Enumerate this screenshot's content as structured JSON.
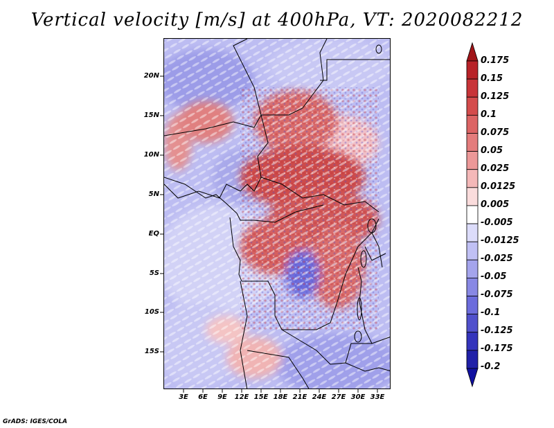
{
  "title": "Vertical velocity [m/s] at 400hPa, VT: 2020082212",
  "credit": "GrADS: IGES/COLA",
  "y_axis_labels": [
    "20N",
    "15N",
    "10N",
    "5N",
    "EQ",
    "5S",
    "10S",
    "15S"
  ],
  "x_axis_labels": [
    "3E",
    "6E",
    "9E",
    "12E",
    "15E",
    "18E",
    "21E",
    "24E",
    "27E",
    "30E",
    "33E"
  ],
  "colorbar": {
    "labels": [
      "0.175",
      "0.15",
      "0.125",
      "0.1",
      "0.075",
      "0.05",
      "0.025",
      "0.0125",
      "0.005",
      "-0.005",
      "-0.0125",
      "-0.025",
      "-0.05",
      "-0.075",
      "-0.1",
      "-0.125",
      "-0.175",
      "-0.2"
    ],
    "colors": [
      "#a01418",
      "#b82228",
      "#c83438",
      "#d44c4c",
      "#dc6464",
      "#e47c7c",
      "#ec9898",
      "#f4b8b8",
      "#fadcdc",
      "#ffffff",
      "#dcdcfa",
      "#c0c0f4",
      "#a4a4ec",
      "#8888e4",
      "#6c6cdc",
      "#5050cc",
      "#3434bc",
      "#2020a8",
      "#1010a0"
    ]
  },
  "map": {
    "lon_range": [
      0,
      35
    ],
    "lat_range": [
      -19,
      24.5
    ],
    "field": "vertical_velocity_400hPa"
  }
}
